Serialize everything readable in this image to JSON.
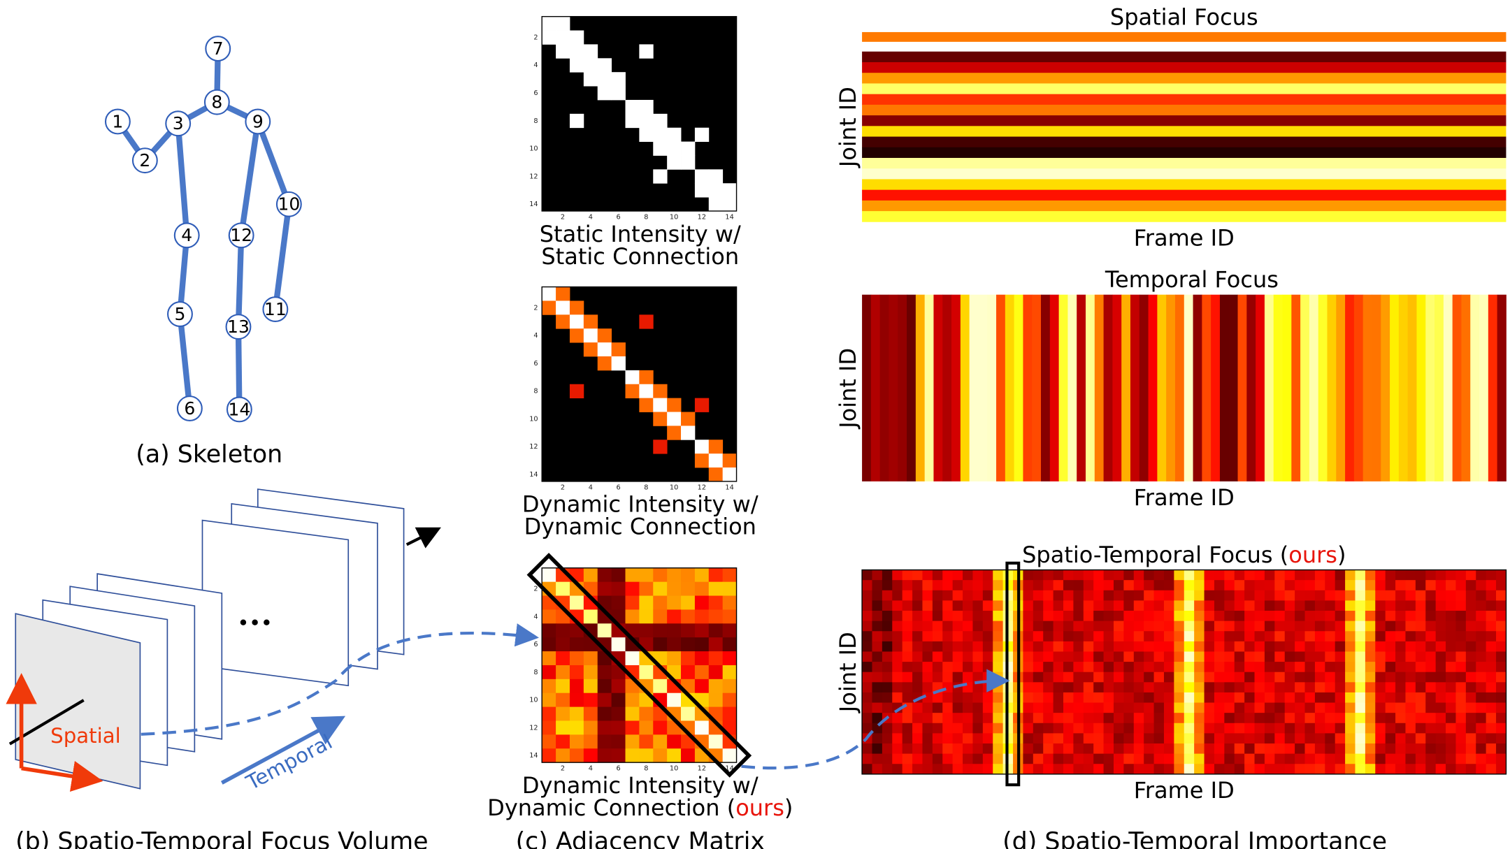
{
  "skeleton": {
    "caption": "(a) Skeleton",
    "joints": [
      "1",
      "2",
      "3",
      "4",
      "5",
      "6",
      "7",
      "8",
      "9",
      "10",
      "11",
      "12",
      "13",
      "14"
    ]
  },
  "volume": {
    "caption": "(b) Spatio-Temporal Focus Volume",
    "spatial_label": "Spatial",
    "temporal_label": "Temporal"
  },
  "adjacency": {
    "caption": "(c) Adjacency Matrix",
    "matrix_ticks": [
      2,
      4,
      6,
      8,
      10,
      12,
      14
    ],
    "matrices": [
      {
        "title": [
          "Static Intensity w/",
          "Static Connection"
        ]
      },
      {
        "title": [
          "Dynamic Intensity w/",
          "Dynamic Connection"
        ]
      },
      {
        "title": [
          "Dynamic Intensity w/",
          "Dynamic Connection ("
        ],
        "highlight": "ours",
        "title_end": ")"
      }
    ]
  },
  "importance": {
    "caption": "(d) Spatio-Temporal Importance",
    "ylabel": "Joint ID",
    "xlabel": "Frame ID",
    "panels": [
      {
        "title": "Spatial Focus"
      },
      {
        "title": "Temporal Focus"
      },
      {
        "title": "Spatio-Temporal Focus (",
        "highlight": "ours",
        "title_end": ")"
      }
    ]
  }
}
